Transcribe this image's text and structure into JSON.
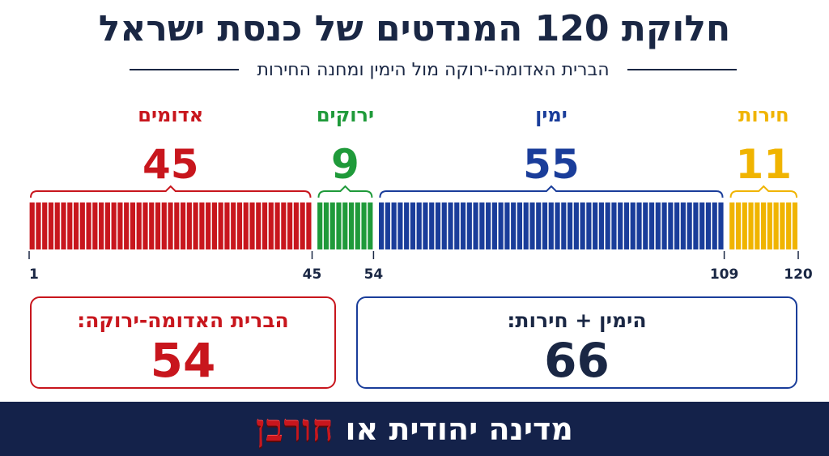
{
  "header": {
    "title": "חלוקת 120 המנדטים של כנסת ישראל",
    "subtitle": "הברית האדומה-ירוקה מול הימין ומחנה החירות"
  },
  "chart_data": {
    "type": "bar",
    "total": 120,
    "segments": [
      {
        "name": "אדומים",
        "value": 45,
        "start": 1,
        "end": 45,
        "color": "#c8161d"
      },
      {
        "name": "ירוקים",
        "value": 9,
        "start": 46,
        "end": 54,
        "color": "#1f9a3a"
      },
      {
        "name": "ימין",
        "value": 55,
        "start": 55,
        "end": 109,
        "color": "#1a3d9a"
      },
      {
        "name": "חירות",
        "value": 11,
        "start": 110,
        "end": 120,
        "color": "#f0b400"
      }
    ],
    "tick_labels": [
      "1",
      "45",
      "54",
      "109",
      "120"
    ]
  },
  "totals": {
    "left": {
      "label": "הברית האדומה-ירוקה:",
      "value": "54",
      "color": "#c8161d"
    },
    "right": {
      "label": "הימין + חירות:",
      "value": "66",
      "color": "#1a3d9a"
    }
  },
  "footer": {
    "slogan": "מדינה יהודית או",
    "emphasis": "חורבן"
  }
}
